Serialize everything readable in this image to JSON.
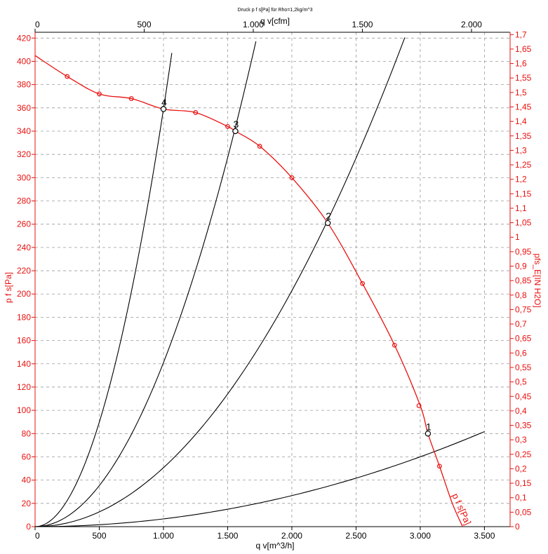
{
  "chart_data": {
    "type": "line",
    "title": "Druck p f s[Pa] für Rho=1,2kg/m^3",
    "xlabel": "q v[m^3/h]",
    "x2label": "q v[cfm]",
    "ylabel": "p f s[Pa]",
    "y2label": "pfs_E[IN H2O]",
    "xlim": [
      0,
      3700
    ],
    "ylim": [
      0,
      425
    ],
    "x2lim": [
      0,
      2177
    ],
    "y2lim": [
      0,
      1.708
    ],
    "grid": true,
    "colors": {
      "fan": "#e8110f",
      "system": "#000000",
      "axis": "#000000",
      "accent": "#e8110f"
    },
    "x_ticks": [
      {
        "v": 0,
        "label": "0"
      },
      {
        "v": 500,
        "label": "500"
      },
      {
        "v": 1000,
        "label": "1.000"
      },
      {
        "v": 1500,
        "label": "1.500"
      },
      {
        "v": 2000,
        "label": "2.000"
      },
      {
        "v": 2500,
        "label": "2.500"
      },
      {
        "v": 3000,
        "label": "3.000"
      },
      {
        "v": 3500,
        "label": "3.500"
      }
    ],
    "x2_ticks": [
      {
        "v": 0,
        "label": "0"
      },
      {
        "v": 500,
        "label": "500"
      },
      {
        "v": 1000,
        "label": "1.000"
      },
      {
        "v": 1500,
        "label": "1.500"
      },
      {
        "v": 2000,
        "label": "2.000"
      }
    ],
    "y_ticks": [
      {
        "v": 0,
        "label": "0"
      },
      {
        "v": 20,
        "label": "20"
      },
      {
        "v": 40,
        "label": "40"
      },
      {
        "v": 60,
        "label": "60"
      },
      {
        "v": 80,
        "label": "80"
      },
      {
        "v": 100,
        "label": "100"
      },
      {
        "v": 120,
        "label": "120"
      },
      {
        "v": 140,
        "label": "140"
      },
      {
        "v": 160,
        "label": "160"
      },
      {
        "v": 180,
        "label": "180"
      },
      {
        "v": 200,
        "label": "200"
      },
      {
        "v": 220,
        "label": "220"
      },
      {
        "v": 240,
        "label": "240"
      },
      {
        "v": 260,
        "label": "260"
      },
      {
        "v": 280,
        "label": "280"
      },
      {
        "v": 300,
        "label": "300"
      },
      {
        "v": 320,
        "label": "320"
      },
      {
        "v": 340,
        "label": "340"
      },
      {
        "v": 360,
        "label": "360"
      },
      {
        "v": 380,
        "label": "380"
      },
      {
        "v": 400,
        "label": "400"
      },
      {
        "v": 420,
        "label": "420"
      }
    ],
    "y2_ticks": [
      {
        "v": 0,
        "label": "0"
      },
      {
        "v": 0.05,
        "label": "0,05"
      },
      {
        "v": 0.1,
        "label": "0,1"
      },
      {
        "v": 0.15,
        "label": "0,15"
      },
      {
        "v": 0.2,
        "label": "0,2"
      },
      {
        "v": 0.25,
        "label": "0,25"
      },
      {
        "v": 0.3,
        "label": "0,3"
      },
      {
        "v": 0.35,
        "label": "0,35"
      },
      {
        "v": 0.4,
        "label": "0,4"
      },
      {
        "v": 0.45,
        "label": "0,45"
      },
      {
        "v": 0.5,
        "label": "0,5"
      },
      {
        "v": 0.55,
        "label": "0,55"
      },
      {
        "v": 0.6,
        "label": "0,6"
      },
      {
        "v": 0.65,
        "label": "0,65"
      },
      {
        "v": 0.7,
        "label": "0,7"
      },
      {
        "v": 0.75,
        "label": "0,75"
      },
      {
        "v": 0.8,
        "label": "0,8"
      },
      {
        "v": 0.85,
        "label": "0,85"
      },
      {
        "v": 0.9,
        "label": "0,9"
      },
      {
        "v": 0.95,
        "label": "0,95"
      },
      {
        "v": 1.0,
        "label": "1"
      },
      {
        "v": 1.05,
        "label": "1,05"
      },
      {
        "v": 1.1,
        "label": "1,1"
      },
      {
        "v": 1.15,
        "label": "1,15"
      },
      {
        "v": 1.2,
        "label": "1,2"
      },
      {
        "v": 1.25,
        "label": "1,25"
      },
      {
        "v": 1.3,
        "label": "1,3"
      },
      {
        "v": 1.35,
        "label": "1,35"
      },
      {
        "v": 1.4,
        "label": "1,4"
      },
      {
        "v": 1.45,
        "label": "1,45"
      },
      {
        "v": 1.5,
        "label": "1,5"
      },
      {
        "v": 1.55,
        "label": "1,55"
      },
      {
        "v": 1.6,
        "label": "1,6"
      },
      {
        "v": 1.65,
        "label": "1,65"
      },
      {
        "v": 1.7,
        "label": "1,7"
      }
    ],
    "series": [
      {
        "name": "p f s[Pa]",
        "kind": "fan",
        "x": [
          0,
          250,
          500,
          750,
          1000,
          1250,
          1500,
          1560,
          1750,
          2000,
          2280,
          2550,
          2800,
          3000,
          3060,
          3150,
          3250,
          3330
        ],
        "y": [
          405,
          387,
          372,
          368,
          359,
          356,
          344,
          340,
          327,
          300,
          261,
          209,
          156,
          104,
          80,
          52,
          20,
          0
        ],
        "markers": [
          [
            250,
            387
          ],
          [
            500,
            372
          ],
          [
            750,
            368
          ],
          [
            1250,
            356
          ],
          [
            1500,
            344
          ],
          [
            1750,
            327
          ],
          [
            2000,
            300
          ],
          [
            2550,
            209
          ],
          [
            2800,
            156
          ],
          [
            2990,
            104
          ],
          [
            3150,
            52
          ]
        ]
      },
      {
        "name": "",
        "kind": "system",
        "k": 6.67e-06,
        "x_end": 3500
      },
      {
        "name": "",
        "kind": "system",
        "k": 5.07e-05,
        "x_end": 2880
      },
      {
        "name": "",
        "kind": "system",
        "k": 0.000141,
        "x_end": 1720
      },
      {
        "name": "",
        "kind": "system",
        "k": 0.000359,
        "x_end": 1065
      }
    ],
    "operating_points": [
      {
        "label": "1",
        "x": 3060,
        "y": 80
      },
      {
        "label": "2",
        "x": 2280,
        "y": 261
      },
      {
        "label": "3",
        "x": 1560,
        "y": 340
      },
      {
        "label": "4",
        "x": 1000,
        "y": 359
      }
    ]
  }
}
